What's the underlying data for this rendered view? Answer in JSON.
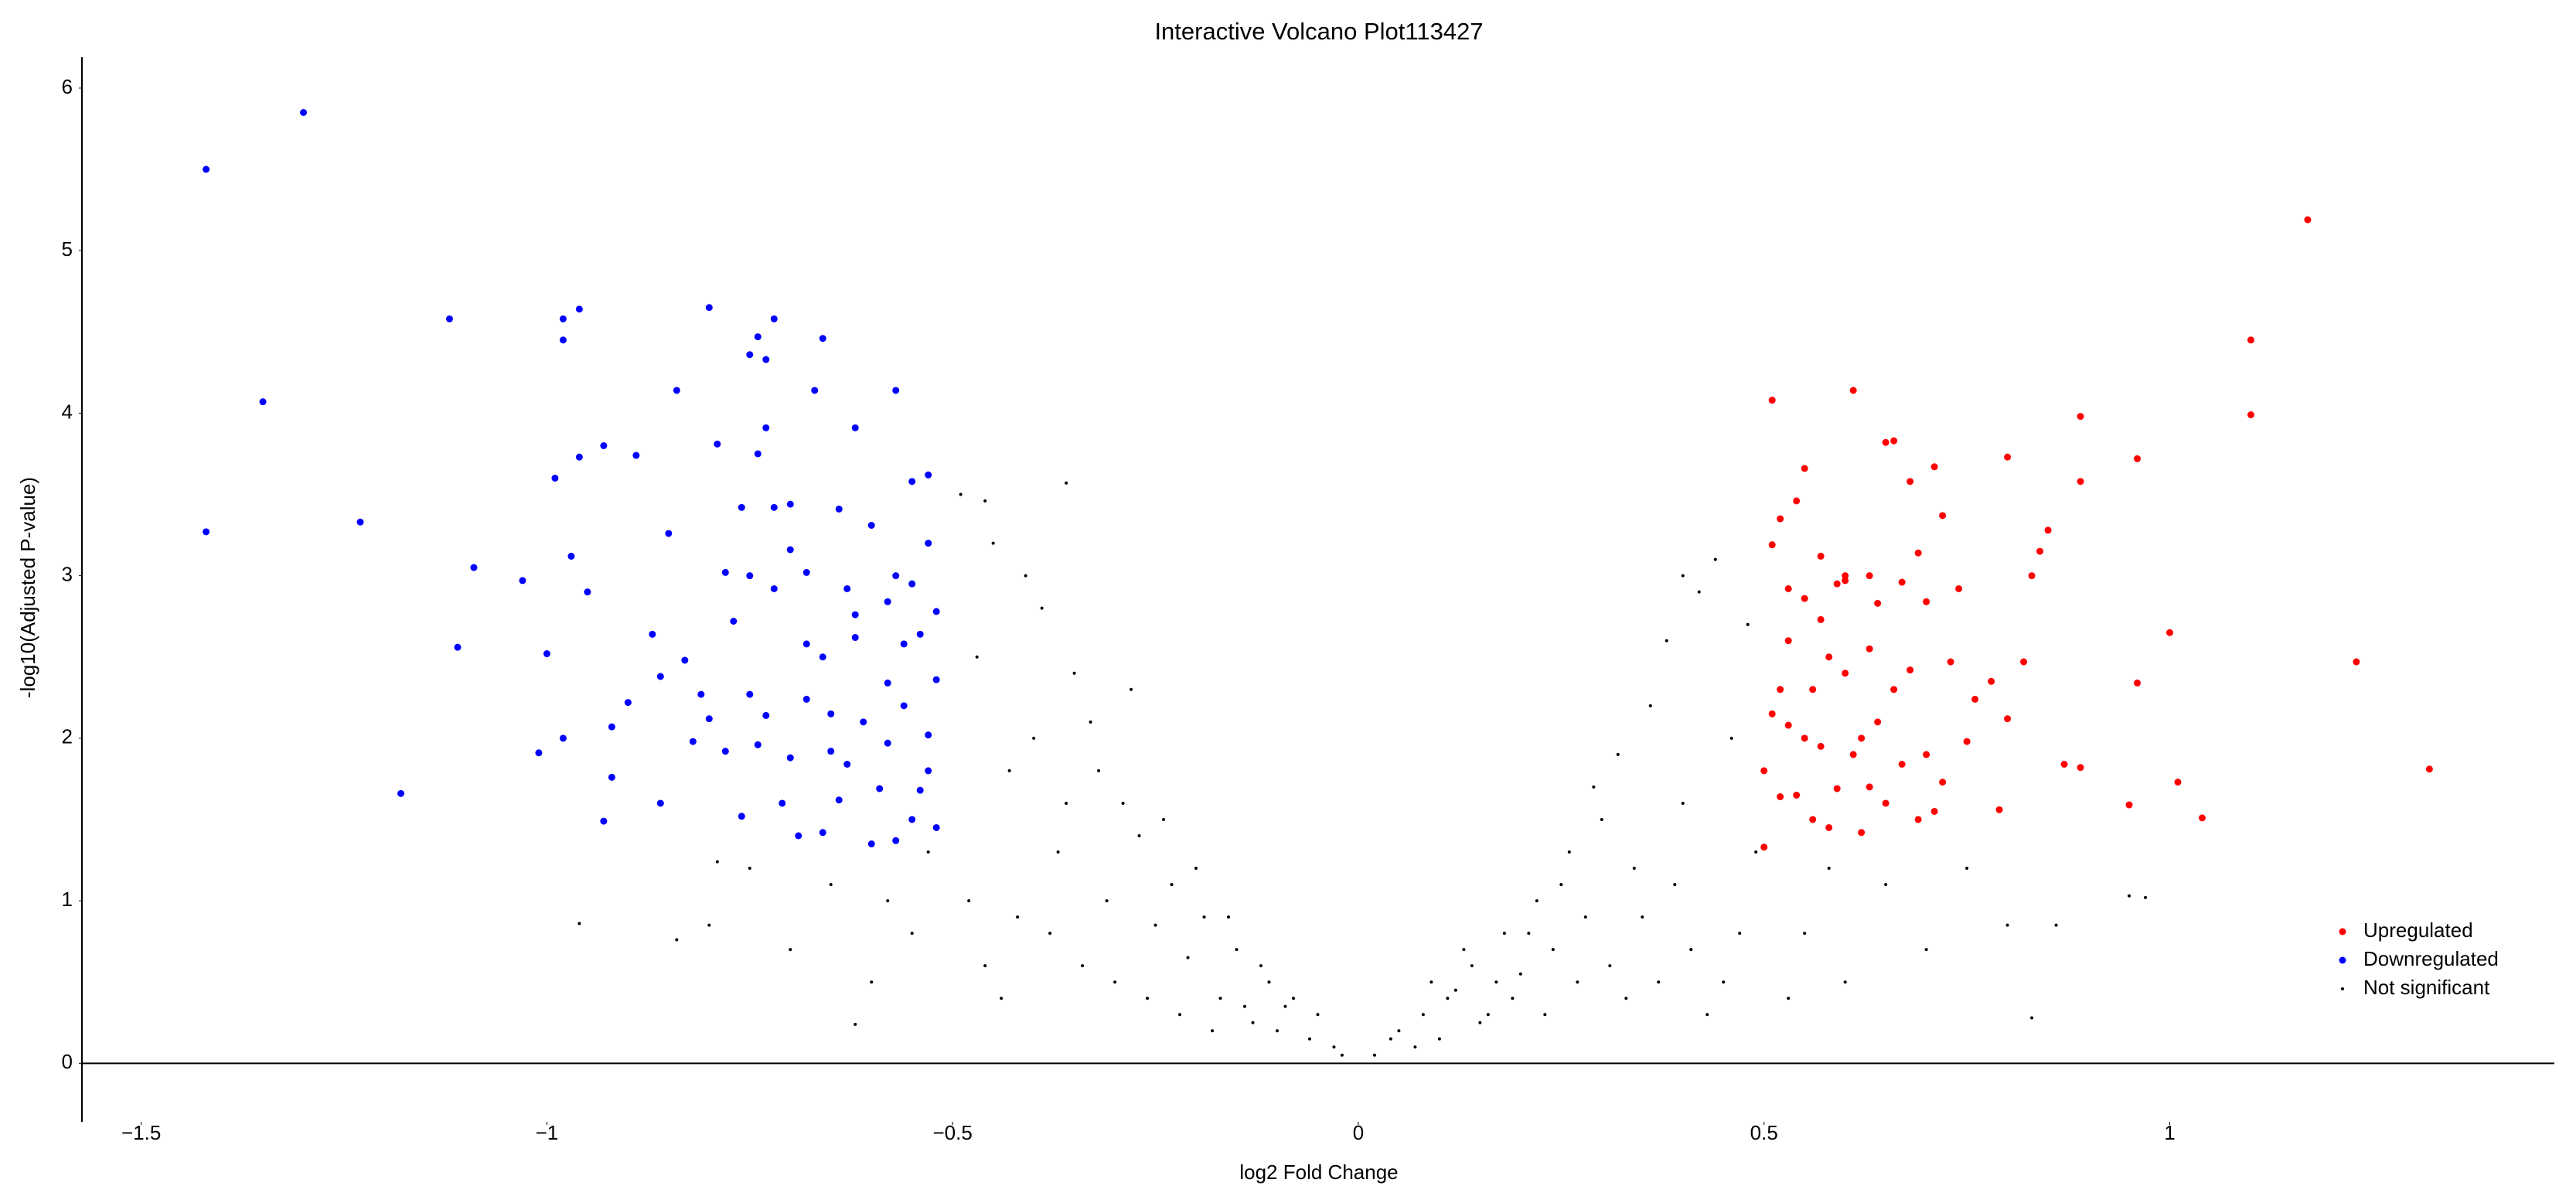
{
  "chart_data": {
    "type": "scatter",
    "title": "Interactive Volcano Plot113427",
    "x_label": "log2 Fold Change",
    "y_label": "-log10(Adjusted P-value)",
    "xlim": [
      -1.573,
      1.474
    ],
    "ylim": [
      -0.36,
      6.19
    ],
    "xticks": [
      {
        "value": -1.5,
        "label": "−1.5"
      },
      {
        "value": -1,
        "label": "−1"
      },
      {
        "value": -0.5,
        "label": "−0.5"
      },
      0,
      0.5,
      1
    ],
    "yticks": [
      0,
      1,
      2,
      3,
      4,
      5,
      6
    ],
    "grid": false,
    "legend": "lower right",
    "series": [
      {
        "name": "Upregulated",
        "color": "#ff0000",
        "size": 4.5,
        "x": [
          1.17,
          1.1,
          1.1,
          1.23,
          1.32,
          0.96,
          0.96,
          0.95,
          1.0,
          1.01,
          1.04,
          0.89,
          0.89,
          0.89,
          0.87,
          0.85,
          0.84,
          0.83,
          0.82,
          0.8,
          0.8,
          0.79,
          0.78,
          0.76,
          0.75,
          0.74,
          0.73,
          0.72,
          0.71,
          0.72,
          0.71,
          0.7,
          0.69,
          0.68,
          0.67,
          0.66,
          0.65,
          0.64,
          0.63,
          0.62,
          0.61,
          0.6,
          0.59,
          0.58,
          0.57,
          0.56,
          0.55,
          0.54,
          0.53,
          0.52,
          0.51,
          0.51,
          0.5,
          0.5,
          0.52,
          0.53,
          0.54,
          0.55,
          0.56,
          0.57,
          0.58,
          0.6,
          0.61,
          0.62,
          0.63,
          0.64,
          0.65,
          0.66,
          0.67,
          0.68,
          0.69,
          0.7,
          0.51,
          0.52,
          0.53,
          0.55,
          0.57,
          0.59,
          0.6,
          0.63
        ],
        "y": [
          5.19,
          4.45,
          3.99,
          2.47,
          1.81,
          3.72,
          2.34,
          1.59,
          2.65,
          1.73,
          1.51,
          3.98,
          3.58,
          1.82,
          1.84,
          3.28,
          3.15,
          3.0,
          2.47,
          3.73,
          2.12,
          1.56,
          2.35,
          2.24,
          1.98,
          2.92,
          2.47,
          3.37,
          3.67,
          1.73,
          1.55,
          2.84,
          3.14,
          3.58,
          2.96,
          3.83,
          3.82,
          2.83,
          2.55,
          2.0,
          4.14,
          2.97,
          1.69,
          2.5,
          3.12,
          2.3,
          3.66,
          3.46,
          2.92,
          2.3,
          4.08,
          3.19,
          1.8,
          1.33,
          3.35,
          2.6,
          1.65,
          2.0,
          1.5,
          2.73,
          1.45,
          2.4,
          1.9,
          1.42,
          3.0,
          2.1,
          1.6,
          2.3,
          1.84,
          2.42,
          1.5,
          1.9,
          2.15,
          1.64,
          2.08,
          2.86,
          1.95,
          2.95,
          3.0,
          1.7
        ]
      },
      {
        "name": "Downregulated",
        "color": "#0000ff",
        "size": 4.5,
        "x": [
          -1.42,
          -1.3,
          -1.35,
          -1.42,
          -1.23,
          -1.12,
          -1.11,
          -1.18,
          -1.09,
          -1.03,
          -1.0,
          -0.99,
          -0.98,
          -0.98,
          -0.96,
          -0.96,
          -0.97,
          -0.95,
          -0.93,
          -0.89,
          -0.84,
          -0.85,
          -0.87,
          -0.86,
          -0.9,
          -0.92,
          -0.92,
          -0.93,
          -0.98,
          -1.01,
          -0.86,
          -0.83,
          -0.82,
          -0.81,
          -0.8,
          -0.79,
          -0.78,
          -0.76,
          -0.75,
          -0.74,
          -0.72,
          -0.73,
          -0.74,
          -0.73,
          -0.72,
          -0.7,
          -0.66,
          -0.67,
          -0.64,
          -0.62,
          -0.57,
          -0.55,
          -0.53,
          -0.75,
          -0.73,
          -0.7,
          -0.68,
          -0.66,
          -0.65,
          -0.63,
          -0.62,
          -0.61,
          -0.6,
          -0.59,
          -0.58,
          -0.57,
          -0.56,
          -0.55,
          -0.54,
          -0.53,
          -0.52,
          -0.52,
          -0.53,
          -0.55,
          -0.57,
          -0.58,
          -0.6,
          -0.62,
          -0.64,
          -0.66,
          -0.68,
          -0.69,
          -0.71,
          -0.72,
          -0.74,
          -0.76,
          -0.78,
          -0.8,
          -0.77,
          -0.75,
          -0.7,
          -0.68,
          -0.65,
          -0.63,
          -0.58,
          -0.56,
          -0.54,
          -0.53,
          -0.52
        ],
        "y": [
          5.5,
          5.85,
          4.07,
          3.27,
          3.33,
          4.58,
          2.56,
          1.66,
          3.05,
          2.97,
          2.52,
          3.6,
          4.45,
          4.58,
          4.64,
          3.73,
          3.12,
          2.9,
          3.8,
          3.74,
          4.14,
          3.26,
          2.64,
          2.38,
          2.22,
          2.07,
          1.76,
          1.49,
          2.0,
          1.91,
          1.6,
          2.48,
          1.98,
          2.27,
          4.65,
          3.81,
          3.02,
          3.42,
          4.36,
          4.47,
          4.58,
          4.33,
          3.75,
          3.91,
          3.42,
          3.16,
          4.46,
          4.14,
          3.41,
          3.91,
          4.14,
          3.58,
          3.62,
          2.27,
          2.14,
          1.88,
          2.24,
          2.5,
          1.92,
          2.92,
          2.62,
          2.1,
          1.35,
          1.69,
          2.84,
          3.0,
          2.2,
          1.5,
          2.64,
          1.8,
          2.36,
          1.45,
          3.2,
          2.95,
          1.37,
          2.34,
          3.31,
          2.76,
          1.62,
          1.42,
          2.58,
          1.4,
          1.6,
          2.92,
          1.96,
          1.52,
          1.92,
          2.12,
          2.72,
          3.0,
          3.44,
          3.02,
          2.15,
          1.84,
          1.97,
          2.58,
          1.68,
          2.02,
          2.78
        ]
      },
      {
        "name": "Not significant",
        "color": "#000000",
        "size": 2,
        "x": [
          0.02,
          -0.03,
          0.05,
          -0.06,
          0.08,
          -0.09,
          0.1,
          -0.11,
          0.12,
          -0.13,
          0.14,
          -0.15,
          0.16,
          -0.17,
          0.18,
          -0.19,
          0.2,
          -0.21,
          0.22,
          -0.23,
          0.24,
          -0.25,
          0.26,
          -0.27,
          0.28,
          -0.29,
          0.3,
          -0.31,
          0.32,
          -0.33,
          0.34,
          -0.35,
          0.36,
          -0.37,
          0.38,
          -0.39,
          0.4,
          -0.41,
          0.42,
          -0.43,
          0.44,
          -0.45,
          0.46,
          -0.47,
          0.48,
          -0.49,
          0.49,
          -0.48,
          0.47,
          -0.46,
          0.45,
          -0.44,
          0.43,
          -0.42,
          0.41,
          -0.4,
          0.39,
          -0.38,
          0.37,
          -0.36,
          0.35,
          -0.34,
          0.33,
          -0.32,
          0.31,
          -0.3,
          0.29,
          -0.28,
          0.27,
          -0.26,
          0.25,
          -0.24,
          0.23,
          -0.22,
          0.21,
          -0.2,
          0.19,
          -0.18,
          0.17,
          -0.16,
          0.15,
          -0.14,
          0.13,
          -0.12,
          0.11,
          -0.1,
          0.09,
          -0.08,
          0.07,
          -0.05,
          0.04,
          -0.02,
          0.55,
          0.6,
          0.65,
          0.7,
          0.75,
          0.8,
          0.83,
          0.86,
          0.95,
          0.97,
          0.58,
          0.53,
          -0.55,
          -0.6,
          -0.65,
          -0.7,
          -0.75,
          -0.8,
          -0.84,
          -0.96,
          -0.79,
          -0.62,
          -0.53,
          -0.58,
          -0.36,
          -0.46,
          0.4
        ],
        "y": [
          0.05,
          0.1,
          0.2,
          0.15,
          0.3,
          0.35,
          0.15,
          0.5,
          0.45,
          0.25,
          0.6,
          0.7,
          0.3,
          0.4,
          0.8,
          0.9,
          0.55,
          0.65,
          1.0,
          1.1,
          0.7,
          0.85,
          1.3,
          1.4,
          0.9,
          1.6,
          1.5,
          1.0,
          1.9,
          2.1,
          1.2,
          2.4,
          2.2,
          1.3,
          2.6,
          2.8,
          1.6,
          3.0,
          2.9,
          1.8,
          3.1,
          3.2,
          2.0,
          2.5,
          2.7,
          3.5,
          1.3,
          1.0,
          0.8,
          0.6,
          0.5,
          0.4,
          0.3,
          0.9,
          0.7,
          2.0,
          1.1,
          0.8,
          0.5,
          1.6,
          0.9,
          0.6,
          0.4,
          1.8,
          0.6,
          0.5,
          1.7,
          2.3,
          0.5,
          0.4,
          1.1,
          1.5,
          0.3,
          0.3,
          0.8,
          1.2,
          0.4,
          0.2,
          0.5,
          0.9,
          0.25,
          0.35,
          0.7,
          0.6,
          0.4,
          0.2,
          0.5,
          0.4,
          0.1,
          0.3,
          0.15,
          0.05,
          0.8,
          0.5,
          1.1,
          0.7,
          1.2,
          0.85,
          0.28,
          0.85,
          1.03,
          1.02,
          1.2,
          0.4,
          0.8,
          0.5,
          1.1,
          0.7,
          1.2,
          0.85,
          0.76,
          0.86,
          1.24,
          0.24,
          1.3,
          1.0,
          3.57,
          3.46,
          3.0
        ]
      }
    ]
  }
}
